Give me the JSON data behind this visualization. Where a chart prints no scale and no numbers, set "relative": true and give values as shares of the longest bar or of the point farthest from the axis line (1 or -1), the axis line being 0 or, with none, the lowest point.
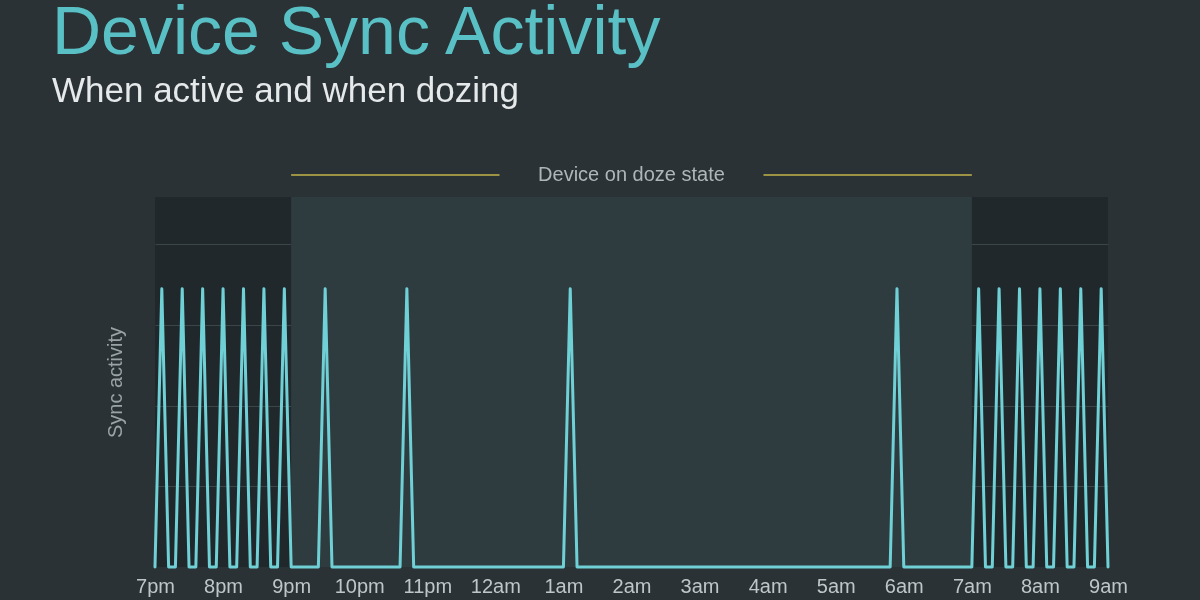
{
  "chart_data": {
    "type": "line",
    "title": "Device Sync Activity",
    "subtitle": "When active and when dozing",
    "ylabel": "Sync activity",
    "relative": true,
    "color": "#6fd0d6",
    "categories": [
      "7pm",
      null,
      null,
      null,
      null,
      null,
      null,
      null,
      null,
      null,
      "8pm",
      null,
      null,
      null,
      null,
      null,
      null,
      null,
      null,
      null,
      "9pm",
      null,
      null,
      null,
      null,
      null,
      null,
      null,
      null,
      null,
      "10pm",
      null,
      null,
      null,
      null,
      null,
      null,
      null,
      null,
      null,
      "11pm",
      null,
      null,
      null,
      null,
      null,
      null,
      null,
      null,
      null,
      "12am",
      null,
      null,
      null,
      null,
      null,
      null,
      null,
      null,
      null,
      "1am",
      null,
      null,
      null,
      null,
      null,
      null,
      null,
      null,
      null,
      "2am",
      null,
      null,
      null,
      null,
      null,
      null,
      null,
      null,
      null,
      "3am",
      null,
      null,
      null,
      null,
      null,
      null,
      null,
      null,
      null,
      "4am",
      null,
      null,
      null,
      null,
      null,
      null,
      null,
      null,
      null,
      "5am",
      null,
      null,
      null,
      null,
      null,
      null,
      null,
      null,
      null,
      "6am",
      null,
      null,
      null,
      null,
      null,
      null,
      null,
      null,
      null,
      "7am",
      null,
      null,
      null,
      null,
      null,
      null,
      null,
      null,
      null,
      "8am",
      null,
      null,
      null,
      null,
      null,
      null,
      null,
      null,
      null,
      "9am"
    ],
    "values": [
      0,
      1,
      0,
      0,
      1,
      0,
      0,
      1,
      0,
      0,
      1,
      0,
      0,
      1,
      0,
      0,
      1,
      0,
      0,
      1,
      0,
      0,
      0,
      0,
      0,
      1,
      0,
      0,
      0,
      0,
      0,
      0,
      0,
      0,
      0,
      0,
      0,
      1,
      0,
      0,
      0,
      0,
      0,
      0,
      0,
      0,
      0,
      0,
      0,
      0,
      0,
      0,
      0,
      0,
      0,
      0,
      0,
      0,
      0,
      0,
      0,
      1,
      0,
      0,
      0,
      0,
      0,
      0,
      0,
      0,
      0,
      0,
      0,
      0,
      0,
      0,
      0,
      0,
      0,
      0,
      0,
      0,
      0,
      0,
      0,
      0,
      0,
      0,
      0,
      0,
      0,
      0,
      0,
      0,
      0,
      0,
      0,
      0,
      0,
      0,
      0,
      0,
      0,
      0,
      0,
      0,
      0,
      0,
      0,
      1,
      0,
      0,
      0,
      0,
      0,
      0,
      0,
      0,
      0,
      0,
      0,
      1,
      0,
      0,
      1,
      0,
      0,
      1,
      0,
      0,
      1,
      0,
      0,
      1,
      0,
      0,
      1,
      0,
      0,
      1,
      0
    ],
    "grid": "y",
    "bands": [
      {
        "axis": "x",
        "from": "9pm",
        "to": "7am",
        "label": "Device on doze state",
        "color": "#2e3c40"
      }
    ]
  }
}
